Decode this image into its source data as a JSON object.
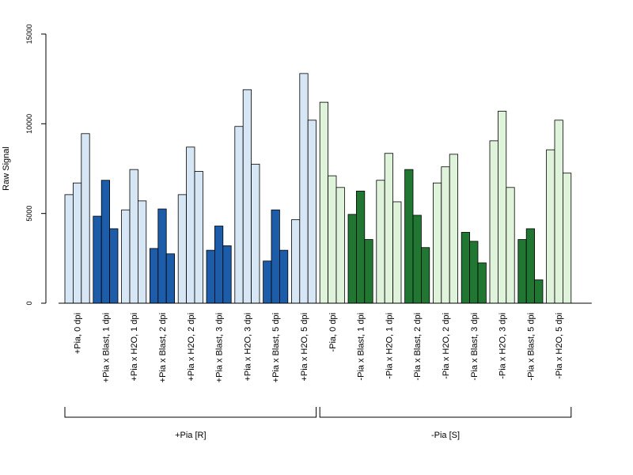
{
  "chart_data": {
    "type": "bar",
    "ylabel": "Raw Signal",
    "xlabel": "",
    "title": "",
    "ylim": [
      0,
      15000
    ],
    "yticks": [
      0,
      5000,
      10000,
      15000
    ],
    "grid": false,
    "colors": {
      "treat_R_light": "#d6e6f5",
      "treat_R_dark": "#1c5ca8",
      "treat_S_light": "#dff2da",
      "treat_S_dark": "#217732"
    },
    "categories": [
      {
        "label": "+Pia, 0 dpi",
        "values": [
          6050,
          6700,
          9450
        ],
        "color": "treat_R_light"
      },
      {
        "label": "+Pia x Blast, 1 dpi",
        "values": [
          4850,
          6850,
          4150
        ],
        "color": "treat_R_dark"
      },
      {
        "label": "+Pia x H2O, 1 dpi",
        "values": [
          5200,
          7450,
          5700
        ],
        "color": "treat_R_light"
      },
      {
        "label": "+Pia x Blast, 2 dpi",
        "values": [
          3050,
          5250,
          2750
        ],
        "color": "treat_R_dark"
      },
      {
        "label": "+Pia x H2O, 2 dpi",
        "values": [
          6050,
          8700,
          7350
        ],
        "color": "treat_R_light"
      },
      {
        "label": "+Pia x Blast, 3 dpi",
        "values": [
          2950,
          4300,
          3200
        ],
        "color": "treat_R_dark"
      },
      {
        "label": "+Pia x H2O, 3 dpi",
        "values": [
          9850,
          11900,
          7750
        ],
        "color": "treat_R_light"
      },
      {
        "label": "+Pia x Blast, 5 dpi",
        "values": [
          2350,
          5200,
          2950
        ],
        "color": "treat_R_dark"
      },
      {
        "label": "+Pia x H2O, 5 dpi",
        "values": [
          4650,
          12800,
          10200
        ],
        "color": "treat_R_light"
      },
      {
        "label": "-Pia, 0 dpi",
        "values": [
          11200,
          7100,
          6450
        ],
        "color": "treat_S_light"
      },
      {
        "label": "-Pia x Blast, 1 dpi",
        "values": [
          4950,
          6250,
          3550
        ],
        "color": "treat_S_dark"
      },
      {
        "label": "-Pia x H2O, 1 dpi",
        "values": [
          6850,
          8350,
          5650
        ],
        "color": "treat_S_light"
      },
      {
        "label": "-Pia x Blast, 2 dpi",
        "values": [
          7450,
          4900,
          3100
        ],
        "color": "treat_S_dark"
      },
      {
        "label": "-Pia x H2O, 2 dpi",
        "values": [
          6700,
          7600,
          8300
        ],
        "color": "treat_S_light"
      },
      {
        "label": "-Pia x Blast, 3 dpi",
        "values": [
          3950,
          3450,
          2250
        ],
        "color": "treat_S_dark"
      },
      {
        "label": "-Pia x H2O, 3 dpi",
        "values": [
          9050,
          10700,
          6450
        ],
        "color": "treat_S_light"
      },
      {
        "label": "-Pia x Blast, 5 dpi",
        "values": [
          3550,
          4150,
          1300
        ],
        "color": "treat_S_dark"
      },
      {
        "label": "-Pia x H2O, 5 dpi",
        "values": [
          8550,
          10200,
          7250
        ],
        "color": "treat_S_light"
      }
    ],
    "groups": [
      {
        "label": "+Pia [R]",
        "first": 0,
        "last": 8
      },
      {
        "label": "-Pia [S]",
        "first": 9,
        "last": 17
      }
    ]
  }
}
